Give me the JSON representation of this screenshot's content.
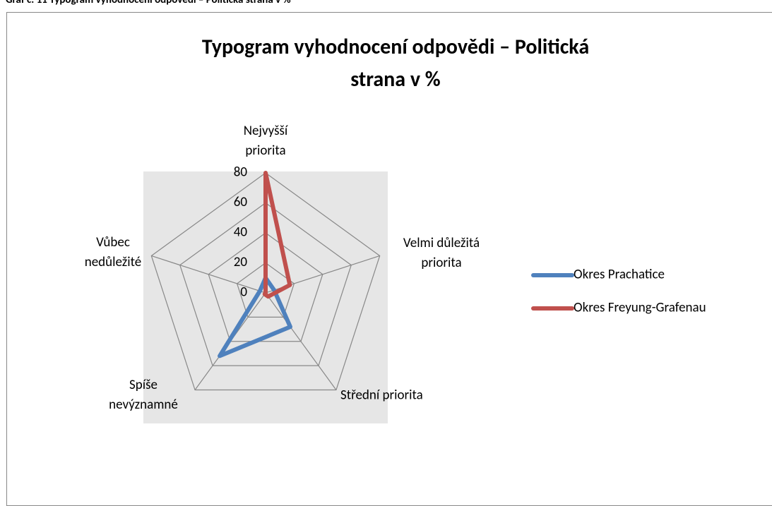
{
  "caption": "Graf č. 11 Typogram vyhodnocení odpovědí – Politická strana v %",
  "chart_data": {
    "type": "radar",
    "title": "Typogram vyhodnocení odpovědi – Politická strana v %",
    "categories": [
      "Nejvyšší priorita",
      "Velmi důležitá priorita",
      "Střední priorita",
      "Spíše nevýznamné",
      "Vůbec nedůležité"
    ],
    "series": [
      {
        "name": "Okres Prachatice",
        "color": "#4f81bd",
        "values": [
          10,
          6,
          28,
          52,
          4
        ]
      },
      {
        "name": "Okres Freyung-Grafenau",
        "color": "#c0504d",
        "values": [
          80,
          17,
          3,
          1,
          0
        ]
      }
    ],
    "ylim": [
      0,
      80
    ],
    "yticks": [
      0,
      20,
      40,
      60,
      80
    ],
    "grid": true,
    "legend": "right"
  }
}
